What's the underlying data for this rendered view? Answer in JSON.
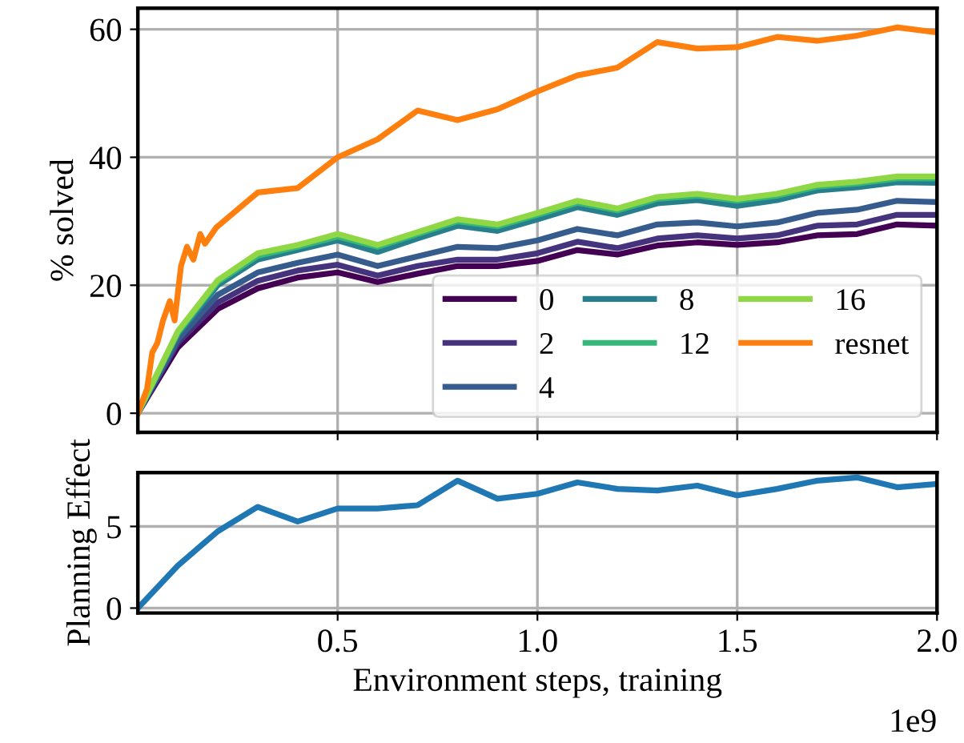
{
  "chart_data": [
    {
      "type": "line",
      "ylabel": "% solved",
      "x": [
        0,
        0.1,
        0.2,
        0.3,
        0.4,
        0.5,
        0.6,
        0.7,
        0.8,
        0.9,
        1.0,
        1.1,
        1.2,
        1.3,
        1.4,
        1.5,
        1.6,
        1.7,
        1.8,
        1.9,
        2.0
      ],
      "series": [
        {
          "name": "0",
          "color": "#440154",
          "values": [
            0,
            10.3,
            16.3,
            19.5,
            21.2,
            22,
            20.5,
            21.8,
            23,
            23,
            23.8,
            25.5,
            24.8,
            26.2,
            26.7,
            26.3,
            26.7,
            27.8,
            28,
            29.5,
            29.3
          ]
        },
        {
          "name": "2",
          "color": "#46337e",
          "values": [
            0,
            11,
            17.3,
            20.7,
            22.3,
            23.2,
            21.5,
            23,
            24,
            24,
            25,
            26.8,
            25.8,
            27.3,
            27.8,
            27.3,
            27.8,
            29.3,
            29.5,
            31,
            31
          ]
        },
        {
          "name": "4",
          "color": "#365c8d",
          "values": [
            0,
            11.5,
            18.5,
            22,
            23.5,
            24.8,
            23,
            24.5,
            26,
            25.8,
            27,
            28.8,
            27.8,
            29.5,
            29.8,
            29.2,
            29.8,
            31.3,
            31.8,
            33.2,
            33
          ]
        },
        {
          "name": "8",
          "color": "#277f8e",
          "values": [
            0,
            12.3,
            20,
            24,
            25.5,
            27,
            25.2,
            27.3,
            29.3,
            28.5,
            30.3,
            32.2,
            31,
            32.8,
            33.3,
            32.4,
            33.3,
            34.8,
            35.3,
            36.1,
            36
          ]
        },
        {
          "name": "12",
          "color": "#35b779",
          "values": [
            0,
            12.6,
            20.5,
            24.6,
            26,
            27.6,
            26,
            28,
            30,
            29.2,
            31,
            32.9,
            31.7,
            33.5,
            34,
            33.2,
            34,
            35.4,
            35.9,
            36.7,
            36.7
          ]
        },
        {
          "name": "16",
          "color": "#8fd744",
          "values": [
            0,
            12.8,
            20.8,
            25,
            26.3,
            28,
            26.3,
            28.3,
            30.3,
            29.5,
            31.3,
            33.2,
            32,
            33.8,
            34.3,
            33.5,
            34.3,
            35.7,
            36.2,
            37,
            37
          ]
        },
        {
          "name": "resnet",
          "color": "#ff7f0e",
          "x": [
            0,
            0.023,
            0.036,
            0.049,
            0.063,
            0.08,
            0.092,
            0.108,
            0.123,
            0.139,
            0.156,
            0.168,
            0.196,
            0.3,
            0.4,
            0.5,
            0.6,
            0.7,
            0.8,
            0.9,
            1.0,
            1.1,
            1.2,
            1.3,
            1.4,
            1.5,
            1.6,
            1.7,
            1.8,
            1.9,
            2.0
          ],
          "values": [
            0,
            3.8,
            9.5,
            11,
            14.5,
            17.5,
            14.5,
            23,
            26,
            24,
            28,
            26.5,
            29,
            34.5,
            35.2,
            40,
            42.8,
            47.3,
            45.8,
            47.5,
            50.3,
            52.8,
            54,
            58,
            57,
            57.2,
            58.8,
            58.2,
            59,
            60.3,
            59.5
          ]
        }
      ],
      "xlim": [
        0,
        2.0
      ],
      "ylim": [
        -3,
        63.3
      ],
      "yticks": [
        0,
        20,
        40,
        60
      ],
      "tick_labels": "y",
      "grid": true,
      "legend": "bottom right",
      "line_style": "solid",
      "marker": "none"
    },
    {
      "type": "line",
      "ylabel": "Planning Effect",
      "xlabel": "Environment steps, training",
      "annotations": [
        "1e9"
      ],
      "x": [
        0,
        0.1,
        0.2,
        0.3,
        0.4,
        0.5,
        0.6,
        0.7,
        0.8,
        0.9,
        1.0,
        1.1,
        1.2,
        1.3,
        1.4,
        1.5,
        1.6,
        1.7,
        1.8,
        1.9,
        2.0
      ],
      "series": [
        {
          "color": "#1f77b4",
          "values": [
            0,
            2.6,
            4.7,
            6.2,
            5.3,
            6.1,
            6.1,
            6.3,
            7.8,
            6.7,
            7.0,
            7.7,
            7.3,
            7.2,
            7.5,
            6.9,
            7.3,
            7.8,
            8.0,
            7.4,
            7.6
          ]
        }
      ],
      "xlim": [
        0,
        2.0
      ],
      "xticks": [
        {
          "value": 0.5,
          "label": "0.5"
        },
        {
          "value": 1,
          "label": "1.0"
        },
        {
          "value": 1.5,
          "label": "1.5"
        },
        {
          "value": 2,
          "label": "2.0"
        }
      ],
      "ylim": [
        -0.3,
        8.3
      ],
      "yticks": [
        0,
        5
      ],
      "grid": true,
      "legend": false,
      "line_style": "solid",
      "marker": "none"
    }
  ]
}
